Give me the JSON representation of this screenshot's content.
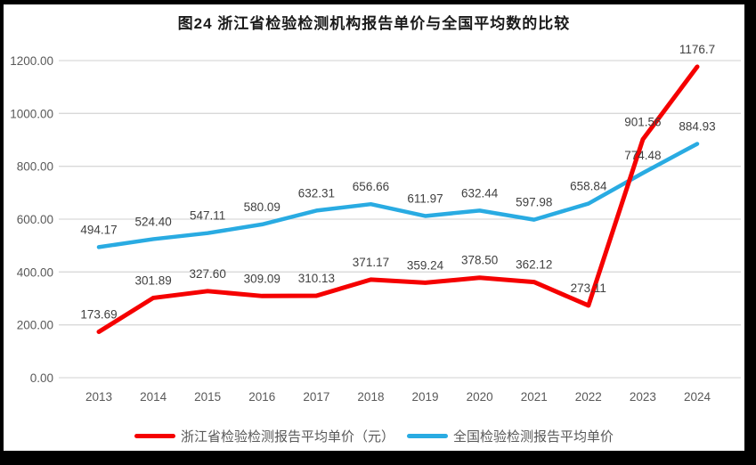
{
  "title": "图24  浙江省检验检测机构报告单价与全国平均数的比较",
  "colors": {
    "zhejiang": "#f50000",
    "national": "#29abe2",
    "grid": "#d9d9d9",
    "tick_text": "#595959",
    "label_text": "#404040",
    "frame": "#000000"
  },
  "chart_data": {
    "type": "line",
    "categories": [
      "2013",
      "2014",
      "2015",
      "2016",
      "2017",
      "2018",
      "2019",
      "2020",
      "2021",
      "2022",
      "2023",
      "2024"
    ],
    "series": [
      {
        "name": "浙江省检验检测报告平均单价（元）",
        "color_key": "zhejiang",
        "values": [
          173.69,
          301.89,
          327.6,
          309.09,
          310.13,
          371.17,
          359.24,
          378.5,
          362.12,
          273.11,
          901.56,
          1176.7
        ],
        "labels": [
          "173.69",
          "301.89",
          "327.60",
          "309.09",
          "310.13",
          "371.17",
          "359.24",
          "378.50",
          "362.12",
          "273.11",
          "901.56",
          "1176.7"
        ]
      },
      {
        "name": "全国检验检测报告平均单价",
        "color_key": "national",
        "values": [
          494.17,
          524.4,
          547.11,
          580.09,
          632.31,
          656.66,
          611.97,
          632.44,
          597.98,
          658.84,
          774.48,
          884.93
        ],
        "labels": [
          "494.17",
          "524.40",
          "547.11",
          "580.09",
          "632.31",
          "656.66",
          "611.97",
          "632.44",
          "597.98",
          "658.84",
          "774.48",
          "884.93"
        ]
      }
    ],
    "ylim": [
      0,
      1200
    ],
    "yticks": [
      "0.00",
      "200.00",
      "400.00",
      "600.00",
      "800.00",
      "1000.00",
      "1200.00"
    ],
    "grid": true,
    "legend_position": "bottom"
  }
}
